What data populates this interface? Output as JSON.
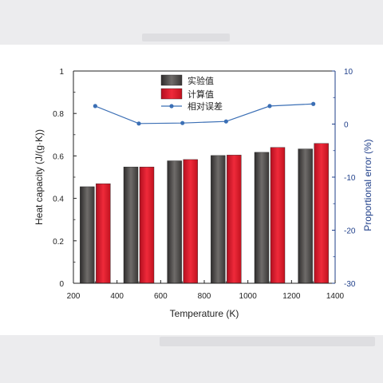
{
  "chart_data": {
    "type": "bar",
    "x": [
      300,
      500,
      700,
      900,
      1100,
      1300
    ],
    "series": [
      {
        "name": "实验值",
        "values": [
          0.455,
          0.548,
          0.577,
          0.602,
          0.617,
          0.633
        ],
        "color": "#4d4a49"
      },
      {
        "name": "计算值",
        "values": [
          0.469,
          0.548,
          0.583,
          0.604,
          0.64,
          0.659
        ],
        "color": "#d9182b"
      }
    ],
    "line_series": {
      "name": "相对误差",
      "values": [
        3.4,
        0.1,
        0.2,
        0.5,
        3.4,
        3.8
      ],
      "color": "#3b6fb5",
      "axis": "right"
    },
    "xlabel": "Temperature (K)",
    "ylabel": "Heat capacity (J/(g·K))",
    "y2label": "Proportional error (%)",
    "xlim": [
      200,
      1400
    ],
    "ylim": [
      0,
      1
    ],
    "y2lim": [
      -30,
      10
    ],
    "xticks": [
      "200",
      "400",
      "600",
      "800",
      "1000",
      "1200",
      "1400"
    ],
    "yticks": [
      "0",
      "0.2",
      "0.4",
      "0.6",
      "0.8",
      "1"
    ],
    "y2ticks": [
      "-30",
      "-20",
      "-10",
      "0",
      "10"
    ],
    "legend_position": "top-center",
    "grid": false
  }
}
